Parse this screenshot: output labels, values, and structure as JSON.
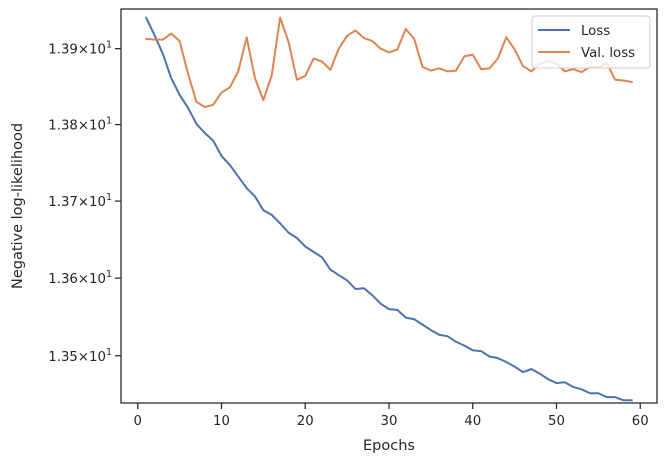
{
  "chart_data": {
    "type": "line",
    "xlabel": "Epochs",
    "ylabel": "Negative log-likelihood",
    "yscale": "log",
    "xlim": [
      -2,
      62
    ],
    "ylim": [
      13.4395,
      13.9525
    ],
    "grid": false,
    "legend_position": "top-right",
    "xticks": [
      {
        "value": 0,
        "label": "0"
      },
      {
        "value": 10,
        "label": "10"
      },
      {
        "value": 20,
        "label": "20"
      },
      {
        "value": 30,
        "label": "30"
      },
      {
        "value": 40,
        "label": "40"
      },
      {
        "value": 50,
        "label": "50"
      },
      {
        "value": 60,
        "label": "60"
      }
    ],
    "yticks": [
      {
        "value": 13.5,
        "mantissa": "1.35",
        "base": "10",
        "exp": "1"
      },
      {
        "value": 13.6,
        "mantissa": "1.36",
        "base": "10",
        "exp": "1"
      },
      {
        "value": 13.7,
        "mantissa": "1.37",
        "base": "10",
        "exp": "1"
      },
      {
        "value": 13.8,
        "mantissa": "1.38",
        "base": "10",
        "exp": "1"
      },
      {
        "value": 13.9,
        "mantissa": "1.39",
        "base": "10",
        "exp": "1"
      }
    ],
    "x": [
      1,
      2,
      3,
      4,
      5,
      6,
      7,
      8,
      9,
      10,
      11,
      12,
      13,
      14,
      15,
      16,
      17,
      18,
      19,
      20,
      21,
      22,
      23,
      24,
      25,
      26,
      27,
      28,
      29,
      30,
      31,
      32,
      33,
      34,
      35,
      36,
      37,
      38,
      39,
      40,
      41,
      42,
      43,
      44,
      45,
      46,
      47,
      48,
      49,
      50,
      51,
      52,
      53,
      54,
      55,
      56,
      57,
      58,
      59
    ],
    "series": [
      {
        "name": "Loss",
        "color": "#4c72b0",
        "values": [
          13.941,
          13.918,
          13.893,
          13.861,
          13.839,
          13.822,
          13.801,
          13.789,
          13.779,
          13.759,
          13.747,
          13.732,
          13.717,
          13.706,
          13.688,
          13.682,
          13.671,
          13.659,
          13.652,
          13.641,
          13.634,
          13.627,
          13.611,
          13.604,
          13.597,
          13.586,
          13.587,
          13.578,
          13.567,
          13.56,
          13.559,
          13.549,
          13.547,
          13.54,
          13.533,
          13.527,
          13.525,
          13.518,
          13.513,
          13.507,
          13.506,
          13.499,
          13.497,
          13.492,
          13.486,
          13.479,
          13.483,
          13.477,
          13.47,
          13.465,
          13.466,
          13.46,
          13.457,
          13.452,
          13.452,
          13.447,
          13.447,
          13.443,
          13.443
        ]
      },
      {
        "name": "Val. loss",
        "color": "#dd8452",
        "values": [
          13.913,
          13.912,
          13.912,
          13.92,
          13.91,
          13.867,
          13.83,
          13.823,
          13.826,
          13.842,
          13.849,
          13.87,
          13.915,
          13.861,
          13.832,
          13.865,
          13.941,
          13.909,
          13.859,
          13.864,
          13.887,
          13.883,
          13.872,
          13.9,
          13.917,
          13.924,
          13.914,
          13.91,
          13.9,
          13.895,
          13.899,
          13.926,
          13.913,
          13.876,
          13.871,
          13.874,
          13.87,
          13.871,
          13.89,
          13.892,
          13.873,
          13.874,
          13.887,
          13.915,
          13.899,
          13.877,
          13.87,
          13.88,
          13.884,
          13.88,
          13.87,
          13.873,
          13.869,
          13.876,
          13.875,
          13.881,
          13.859,
          13.858,
          13.856
        ]
      }
    ]
  }
}
